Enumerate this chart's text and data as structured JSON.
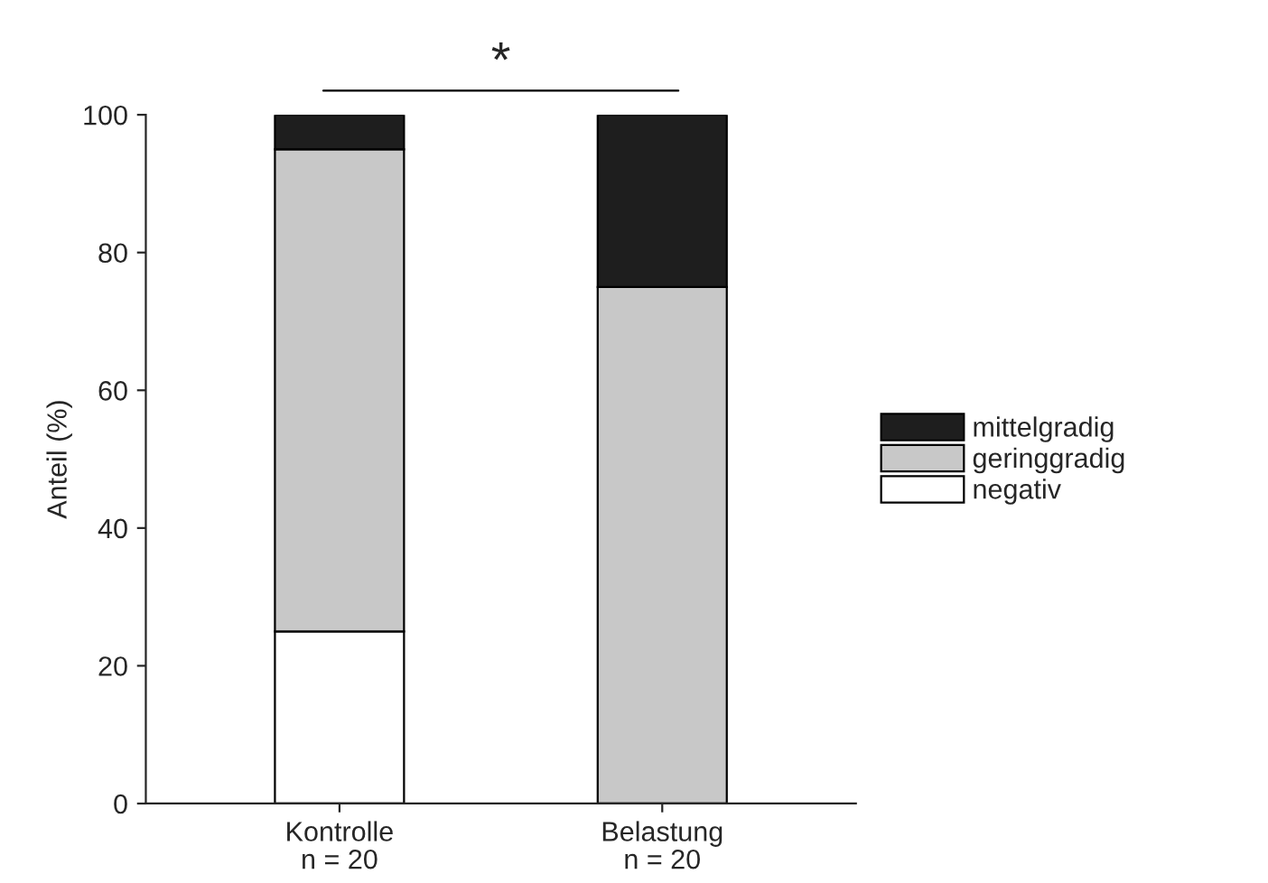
{
  "chart_data": {
    "type": "bar",
    "stacked": true,
    "ylabel": "Anteil (%)",
    "categories": [
      "Kontrolle\nn = 20",
      "Belastung\nn = 20"
    ],
    "series": [
      {
        "name": "negativ",
        "color": "#ffffff",
        "values": [
          25,
          0
        ]
      },
      {
        "name": "geringgradig",
        "color": "#c8c8c8",
        "values": [
          70,
          75
        ]
      },
      {
        "name": "mittelgradig",
        "color": "#1e1e1e",
        "values": [
          5,
          25
        ]
      }
    ],
    "ylim": [
      0,
      100
    ],
    "yticks": [
      0,
      20,
      40,
      60,
      80,
      100
    ],
    "grid": false,
    "legend": "right",
    "annotations": [
      "*"
    ]
  }
}
